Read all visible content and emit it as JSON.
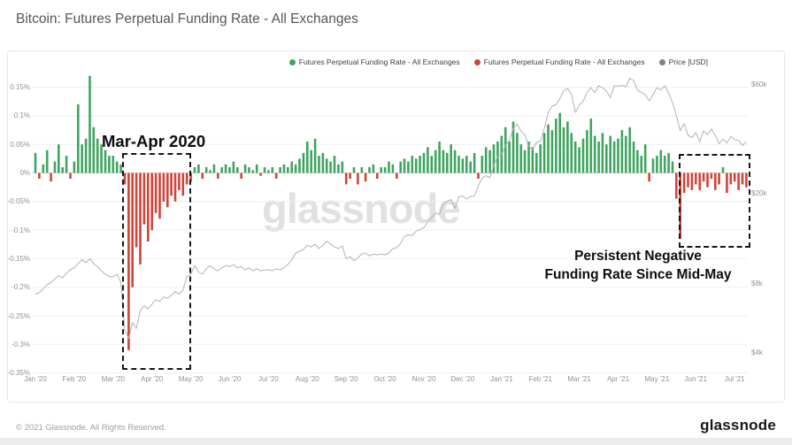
{
  "page": {
    "title": "Bitcoin: Futures Perpetual Funding Rate - All Exchanges"
  },
  "legend": {
    "items": [
      {
        "label": "Futures Perpetual Funding Rate - All Exchanges",
        "color": "#3fa45f"
      },
      {
        "label": "Futures Perpetual Funding Rate - All Exchanges",
        "color": "#ce453a"
      },
      {
        "label": "Price [USD]",
        "color": "#7d8288"
      }
    ]
  },
  "annotations": {
    "box1_label": "Mar-Apr 2020",
    "box2_line1": "Persistent Negative",
    "box2_line2": "Funding Rate Since Mid-May"
  },
  "watermark": "glassnode",
  "footer": {
    "copyright": "© 2021 Glassnode. All Rights Reserved.",
    "logo": "glassnode"
  },
  "chart_data": {
    "type": "bar+line",
    "title": "Bitcoin: Futures Perpetual Funding Rate - All Exchanges",
    "resolution": "10 points per month (~3-day bars), Jan 2020 - mid Jul 2021",
    "colors": {
      "positive": "#3fa45f",
      "negative": "#ce453a",
      "price": "#b3b3b3"
    },
    "x_labels": [
      "Jan '20",
      "Feb '20",
      "Mar '20",
      "Apr '20",
      "May '20",
      "Jun '20",
      "Jul '20",
      "Aug '20",
      "Sep '20",
      "Oct '20",
      "Nov '20",
      "Dec '20",
      "Jan '21",
      "Feb '21",
      "Mar '21",
      "Apr '21",
      "May '21",
      "Jun '21",
      "Jul '21"
    ],
    "y_axis_left": {
      "title": "Funding Rate",
      "tick_labels": [
        "0.15%",
        "0.1%",
        "0.05%",
        "0%",
        "-0.05%",
        "-0.1%",
        "-0.15%",
        "-0.2%",
        "-0.25%",
        "-0.3%",
        "-0.35%"
      ],
      "tick_values": [
        0.15,
        0.1,
        0.05,
        0,
        -0.05,
        -0.1,
        -0.15,
        -0.2,
        -0.25,
        -0.3,
        -0.35
      ],
      "range": [
        -0.35,
        0.175
      ]
    },
    "y_axis_right": {
      "title": "Price [USD]",
      "scale": "log",
      "tick_labels": [
        "$60k",
        "$20k",
        "$8k",
        "$4k"
      ],
      "tick_values_k": [
        60,
        20,
        8,
        4
      ]
    },
    "funding_rate_pct_by_month": [
      [
        0.035,
        -0.01,
        0.015,
        0.04,
        -0.015,
        0.02,
        0.05,
        0.01,
        0.03,
        -0.01
      ],
      [
        0.02,
        0.12,
        0.05,
        0.06,
        0.17,
        0.08,
        0.06,
        0.05,
        0.04,
        0.03
      ],
      [
        0.03,
        0.02,
        0.015,
        -0.02,
        -0.31,
        -0.2,
        -0.13,
        -0.16,
        -0.09,
        -0.12
      ],
      [
        -0.1,
        -0.07,
        -0.08,
        -0.05,
        -0.06,
        -0.04,
        -0.05,
        -0.03,
        -0.04,
        -0.02
      ],
      [
        -0.015,
        0.01,
        0.015,
        -0.01,
        0.01,
        0.005,
        0.015,
        -0.01,
        0.01,
        0.015
      ],
      [
        0.01,
        0.02,
        0.01,
        -0.01,
        0.015,
        0.01,
        0.005,
        0.015,
        -0.005,
        0.01
      ],
      [
        0.005,
        0.01,
        -0.01,
        0.01,
        0.015,
        0.01,
        0.02,
        0.015,
        0.025,
        0.035
      ],
      [
        0.055,
        0.04,
        0.06,
        0.03,
        0.035,
        0.025,
        0.02,
        0.03,
        0.015,
        0.02
      ],
      [
        -0.02,
        -0.01,
        0.01,
        -0.02,
        0.01,
        -0.015,
        0.01,
        0.015,
        -0.01,
        0.01
      ],
      [
        0.01,
        0.02,
        0.015,
        -0.01,
        0.02,
        0.025,
        0.02,
        0.03,
        0.025,
        0.03
      ],
      [
        0.035,
        0.045,
        0.03,
        0.04,
        0.055,
        0.04,
        0.035,
        0.05,
        0.04,
        0.03
      ],
      [
        0.025,
        0.03,
        0.02,
        0.035,
        -0.01,
        0.03,
        0.045,
        0.04,
        0.05,
        0.055
      ],
      [
        0.065,
        0.08,
        0.055,
        0.09,
        0.07,
        0.05,
        0.04,
        0.055,
        0.045,
        0.035
      ],
      [
        0.05,
        0.07,
        0.085,
        0.075,
        0.095,
        0.105,
        0.08,
        0.09,
        0.07,
        0.055
      ],
      [
        0.045,
        0.06,
        0.075,
        0.095,
        0.065,
        0.055,
        0.07,
        0.05,
        0.065,
        0.055
      ],
      [
        0.06,
        0.075,
        0.065,
        0.08,
        0.055,
        0.04,
        0.03,
        0.05,
        -0.015,
        0.025
      ],
      [
        0.03,
        0.04,
        0.03,
        0.035,
        0.02,
        -0.045,
        -0.115,
        -0.035,
        -0.025,
        -0.03
      ],
      [
        -0.02,
        -0.03,
        -0.015,
        -0.025,
        -0.01,
        -0.03,
        -0.02,
        0.01,
        -0.035,
        -0.02
      ],
      [
        -0.015,
        -0.03,
        -0.02,
        -0.025
      ]
    ],
    "price_usd_k_by_month": [
      [
        7.2,
        7.3,
        7.6,
        7.9,
        8.1,
        8.4,
        8.7,
        8.5,
        8.9,
        9.2
      ],
      [
        9.4,
        9.8,
        10.2,
        9.9,
        10.3,
        9.8,
        9.5,
        9.1,
        8.8,
        8.6
      ],
      [
        8.6,
        8.8,
        8.1,
        5.0,
        4.6,
        5.4,
        5.1,
        6.1,
        6.4,
        6.2
      ],
      [
        6.5,
        6.8,
        6.7,
        7.0,
        6.9,
        7.1,
        7.4,
        7.2,
        7.5,
        8.6
      ],
      [
        8.8,
        9.6,
        9.0,
        8.8,
        9.3,
        9.6,
        9.3,
        9.1,
        9.4,
        9.6
      ],
      [
        9.5,
        9.7,
        9.4,
        9.5,
        9.2,
        9.4,
        9.1,
        9.3,
        9.1,
        9.2
      ],
      [
        9.2,
        9.1,
        9.3,
        9.2,
        9.4,
        9.7,
        10.2,
        10.9,
        11.1,
        11.3
      ],
      [
        11.8,
        11.6,
        11.9,
        11.4,
        11.8,
        12.3,
        11.9,
        11.6,
        11.4,
        11.7
      ],
      [
        10.3,
        10.5,
        10.1,
        10.4,
        10.8,
        10.9,
        10.6,
        10.8,
        10.7,
        10.8
      ],
      [
        10.7,
        10.9,
        11.4,
        11.5,
        12.0,
        12.9,
        13.1,
        13.0,
        13.6,
        13.8
      ],
      [
        14.1,
        14.9,
        15.6,
        16.3,
        16.1,
        17.9,
        18.4,
        18.7,
        17.1,
        19.2
      ],
      [
        19.4,
        18.8,
        19.3,
        19.4,
        21.5,
        23.2,
        23.8,
        23.3,
        26.3,
        29.0
      ],
      [
        29.4,
        32.3,
        34.1,
        38.3,
        40.1,
        37.3,
        35.9,
        32.0,
        30.9,
        33.4
      ],
      [
        33.6,
        38.4,
        44.9,
        48.0,
        48.7,
        51.7,
        56.0,
        57.5,
        54.0,
        45.1
      ],
      [
        48.5,
        50.4,
        55.0,
        57.9,
        54.9,
        59.0,
        57.7,
        55.9,
        52.4,
        58.9
      ],
      [
        58.8,
        59.2,
        58.3,
        63.6,
        62.1,
        56.3,
        55.1,
        53.9,
        50.6,
        54.1
      ],
      [
        57.9,
        56.5,
        59.0,
        54.9,
        49.8,
        43.6,
        37.4,
        40.3,
        35.8,
        34.9
      ],
      [
        36.8,
        33.5,
        37.4,
        35.9,
        38.2,
        35.7,
        32.8,
        34.5,
        33.1,
        35.4
      ],
      [
        34.3,
        33.9,
        32.3,
        33.6
      ]
    ]
  }
}
